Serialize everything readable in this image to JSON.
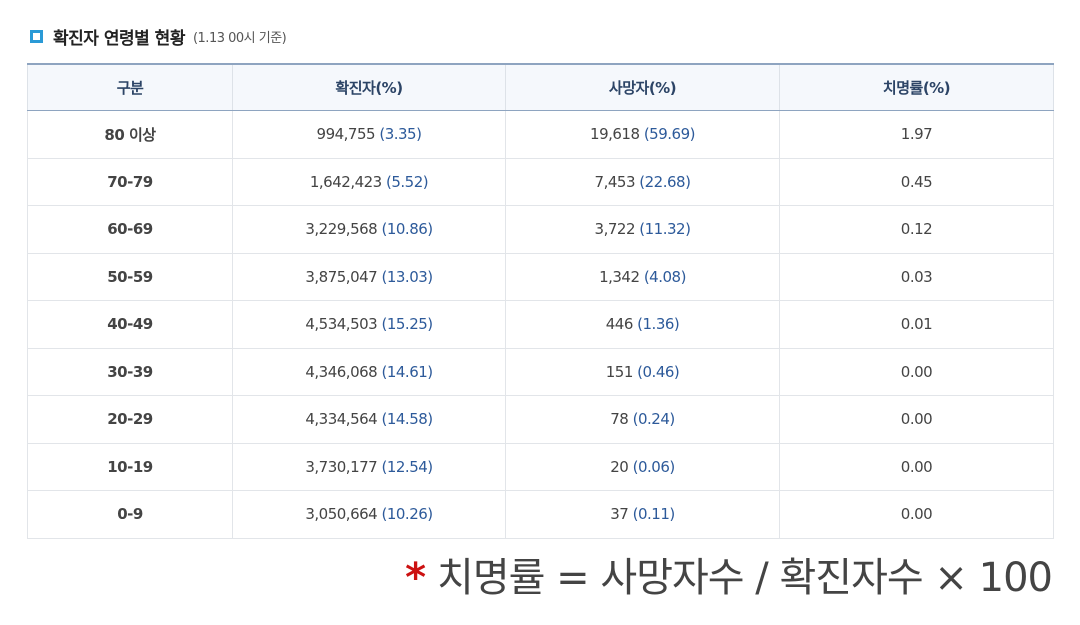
{
  "header": {
    "title": "확진자 연령별 현황",
    "subtitle": "(1.13 00시 기준)"
  },
  "table": {
    "columns": [
      "구분",
      "확진자(%)",
      "사망자(%)",
      "치명률(%)"
    ],
    "rows": [
      {
        "age": "80 이상",
        "confirmed": "994,755",
        "confirmed_pct": "(3.35)",
        "deaths": "19,618",
        "deaths_pct": "(59.69)",
        "rate": "1.97"
      },
      {
        "age": "70-79",
        "confirmed": "1,642,423",
        "confirmed_pct": "(5.52)",
        "deaths": "7,453",
        "deaths_pct": "(22.68)",
        "rate": "0.45"
      },
      {
        "age": "60-69",
        "confirmed": "3,229,568",
        "confirmed_pct": "(10.86)",
        "deaths": "3,722",
        "deaths_pct": "(11.32)",
        "rate": "0.12"
      },
      {
        "age": "50-59",
        "confirmed": "3,875,047",
        "confirmed_pct": "(13.03)",
        "deaths": "1,342",
        "deaths_pct": "(4.08)",
        "rate": "0.03"
      },
      {
        "age": "40-49",
        "confirmed": "4,534,503",
        "confirmed_pct": "(15.25)",
        "deaths": "446",
        "deaths_pct": "(1.36)",
        "rate": "0.01"
      },
      {
        "age": "30-39",
        "confirmed": "4,346,068",
        "confirmed_pct": "(14.61)",
        "deaths": "151",
        "deaths_pct": "(0.46)",
        "rate": "0.00"
      },
      {
        "age": "20-29",
        "confirmed": "4,334,564",
        "confirmed_pct": "(14.58)",
        "deaths": "78",
        "deaths_pct": "(0.24)",
        "rate": "0.00"
      },
      {
        "age": "10-19",
        "confirmed": "3,730,177",
        "confirmed_pct": "(12.54)",
        "deaths": "20",
        "deaths_pct": "(0.06)",
        "rate": "0.00"
      },
      {
        "age": "0-9",
        "confirmed": "3,050,664",
        "confirmed_pct": "(10.26)",
        "deaths": "37",
        "deaths_pct": "(0.11)",
        "rate": "0.00"
      }
    ]
  },
  "footnote": {
    "star": "*",
    "formula": "치명률 = 사망자수 / 확진자수 × 100"
  },
  "colors": {
    "accent": "#2a9ad6",
    "header_text": "#2c4466",
    "value_blue": "#2d5a9a",
    "star_red": "#cc1111"
  },
  "icons": {
    "title_marker": "square-outline-icon"
  }
}
